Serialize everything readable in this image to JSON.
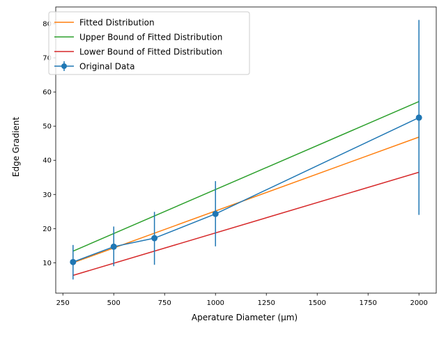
{
  "chart_data": {
    "type": "line",
    "title": "",
    "xlabel": "Aperature Diameter (μm)",
    "ylabel": "Edge Gradient",
    "xlim": [
      215,
      2085
    ],
    "ylim": [
      1.1,
      84.9
    ],
    "xticks": [
      250,
      500,
      750,
      1000,
      1250,
      1500,
      1750,
      2000
    ],
    "yticks": [
      10,
      20,
      30,
      40,
      50,
      60,
      70,
      80
    ],
    "grid": false,
    "legend_position": "top-left",
    "series": [
      {
        "name": "Fitted Distribution",
        "color": "#ff7f0e",
        "x": [
          300,
          2000
        ],
        "y": [
          10.0,
          46.8
        ]
      },
      {
        "name": "Upper Bound of Fitted Distribution",
        "color": "#2ca02c",
        "x": [
          300,
          2000
        ],
        "y": [
          13.4,
          57.2
        ]
      },
      {
        "name": "Lower Bound of Fitted Distribution",
        "color": "#d62728",
        "x": [
          300,
          2000
        ],
        "y": [
          6.3,
          36.5
        ]
      },
      {
        "name": "Original Data",
        "color": "#1f77b4",
        "x": [
          300,
          500,
          700,
          1000,
          2000
        ],
        "y": [
          10.2,
          14.7,
          17.2,
          24.3,
          52.5
        ],
        "yerr_low": [
          5.1,
          9.0,
          9.4,
          14.8,
          24.0
        ],
        "yerr_high": [
          15.2,
          20.6,
          24.9,
          33.9,
          81.1
        ],
        "markers": true
      }
    ]
  }
}
